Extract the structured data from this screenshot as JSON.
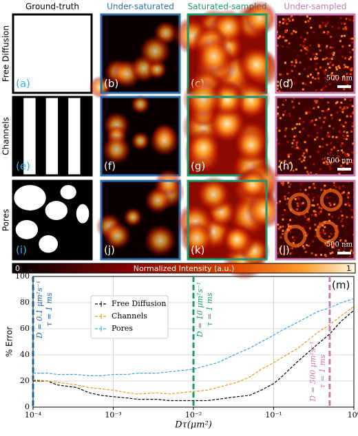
{
  "columns": [
    "Ground-truth",
    "Under-saturated",
    "Saturated-sampled",
    "Under-sampled"
  ],
  "rows": [
    "Free Diffusion",
    "Channels",
    "Pores"
  ],
  "panel_labels": [
    [
      "(a)",
      "(b)",
      "(c)",
      "(d)"
    ],
    [
      "(e)",
      "(f)",
      "(g)",
      "(h)"
    ],
    [
      "(i)",
      "(j)",
      "(k)",
      "(l)"
    ]
  ],
  "scale_bars": [
    "500 nm",
    "500 nm",
    "500 nm"
  ],
  "colorbar": {
    "min_label": "0",
    "label": "Normalized Intensity (a.u.)",
    "max_label": "1"
  },
  "chart_data": {
    "type": "line",
    "panel_label": "(m)",
    "xlabel": "Dτ(μm²)",
    "ylabel": "% Error",
    "xscale": "log",
    "xlim": [
      0.0001,
      1
    ],
    "ylim": [
      0,
      100
    ],
    "xticks": [
      {
        "value": 0.0001,
        "label": "10⁻⁴"
      },
      {
        "value": 0.001,
        "label": "10⁻³"
      },
      {
        "value": 0.01,
        "label": "10⁻²"
      },
      {
        "value": 0.1,
        "label": "10⁻¹"
      },
      {
        "value": 1,
        "label": "10⁰"
      }
    ],
    "yticks": [
      0,
      20,
      40,
      60,
      80,
      100
    ],
    "grid": true,
    "legend": "center left",
    "x": [
      0.0001,
      0.00015,
      0.0002,
      0.00035,
      0.0005,
      0.0007,
      0.001,
      0.0015,
      0.002,
      0.0035,
      0.005,
      0.007,
      0.01,
      0.015,
      0.02,
      0.035,
      0.05,
      0.07,
      0.1,
      0.12,
      0.2,
      0.35,
      0.5,
      0.7,
      1
    ],
    "series": [
      {
        "name": "Free Diffusion",
        "color": "#000000",
        "values": [
          20,
          20,
          17,
          15,
          11,
          9,
          8,
          7,
          6,
          6,
          5,
          5,
          5,
          5,
          6,
          8,
          9,
          13,
          18,
          22,
          35,
          48,
          56,
          66,
          74
        ]
      },
      {
        "name": "Channels",
        "color": "#e39a1d",
        "values": [
          21,
          20,
          19,
          17,
          15,
          14,
          13,
          11,
          10,
          11,
          10,
          11,
          12,
          13,
          15,
          19,
          23,
          29,
          34,
          37,
          45,
          57,
          63,
          70,
          77
        ]
      },
      {
        "name": "Pores",
        "color": "#3ba3e0",
        "values": [
          26,
          26,
          25,
          25,
          24,
          24,
          25,
          25,
          26,
          26,
          27,
          28,
          29,
          32,
          34,
          41,
          45,
          50,
          55,
          58,
          65,
          73,
          76,
          80,
          83
        ]
      }
    ],
    "annotations": [
      {
        "x": 0.0001,
        "color": "#1f5fa0",
        "lines": [
          "D = 0.1 μm²s⁻¹",
          "τ = 1 ms"
        ]
      },
      {
        "x": 0.01,
        "color": "#1a9a6c",
        "lines": [
          "D = 10 μm²s⁻¹",
          "τ = 1 ms"
        ]
      },
      {
        "x": 0.5,
        "color": "#c779b0",
        "lines": [
          "D = 500 μm²s⁻¹",
          "τ = 1 ms"
        ]
      }
    ]
  }
}
